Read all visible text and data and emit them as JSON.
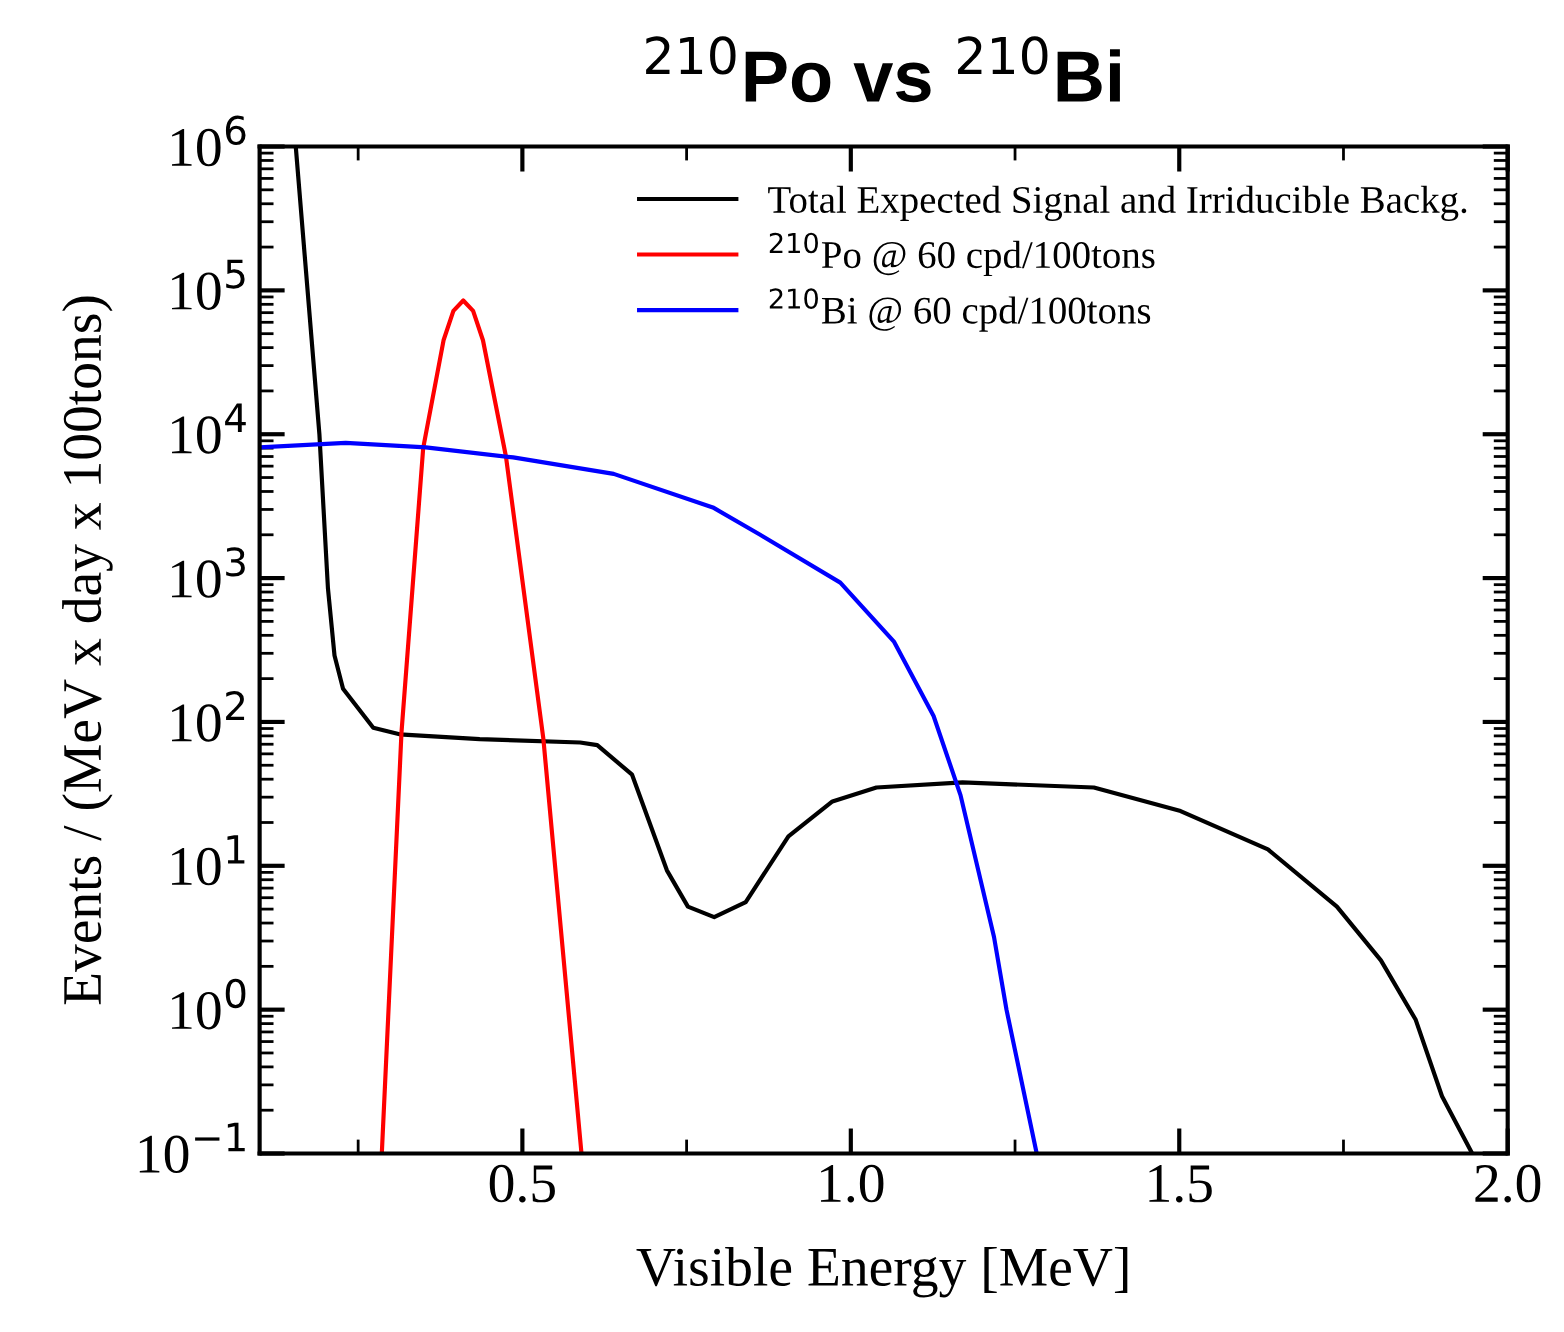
{
  "chart_data": {
    "type": "line",
    "title": "$^{210}$Po vs $^{210}$Bi",
    "xlabel": "Visible Energy [MeV]",
    "ylabel": "Events / (MeV x day x 100tons)",
    "log": "y",
    "grid": false,
    "legend": "top right",
    "line_style": "solid",
    "marker": "none",
    "xlim": [
      0.1,
      2.0
    ],
    "xticks": [
      0.5,
      {
        "value": 1,
        "label": "1.0"
      },
      1.5,
      {
        "value": 2,
        "label": "2.0"
      }
    ],
    "ylim": [
      0.1,
      1000000
    ],
    "yticks": [
      {
        "value": 0.1,
        "label": "10$^{−1}$"
      },
      {
        "value": 1,
        "label": "10$^{0}$"
      },
      {
        "value": 10,
        "label": "10$^{1}$"
      },
      {
        "value": 100,
        "label": "10$^{2}$"
      },
      {
        "value": 1000,
        "label": "10$^{3}$"
      },
      {
        "value": 10000,
        "label": "10$^{4}$"
      },
      {
        "value": 100000,
        "label": "10$^{5}$"
      },
      {
        "value": 1000000,
        "label": "10$^{6}$"
      }
    ],
    "series": [
      {
        "name": "Total Expected Signal and Irriducible Backg.",
        "color": "#000000",
        "x": [
          0.155,
          0.191,
          0.204,
          0.214,
          0.227,
          0.273,
          0.313,
          0.435,
          0.588,
          0.614,
          0.667,
          0.72,
          0.752,
          0.792,
          0.84,
          0.905,
          0.972,
          1.039,
          1.17,
          1.37,
          1.502,
          1.635,
          1.74,
          1.807,
          1.86,
          1.9,
          1.946
        ],
        "values": [
          1000000,
          10000,
          850,
          290,
          170,
          91,
          82,
          76,
          72,
          69,
          43,
          9.3,
          5.2,
          4.4,
          5.6,
          16,
          28,
          35,
          38,
          35,
          24,
          13,
          5.2,
          2.2,
          0.85,
          0.25,
          0.1
        ]
      },
      {
        "name": "$^{210}$Po @ 60 cpd/100tons",
        "color": "#ff0000",
        "x": [
          0.286,
          0.316,
          0.349,
          0.38,
          0.395,
          0.41,
          0.425,
          0.44,
          0.475,
          0.532,
          0.59
        ],
        "values": [
          0.1,
          85,
          8000,
          45000,
          72000,
          85000,
          72000,
          45000,
          7000,
          76,
          0.1
        ]
      },
      {
        "name": "$^{210}$Bi @ 60 cpd/100tons",
        "color": "#0000ff",
        "x": [
          0.1,
          0.231,
          0.353,
          0.486,
          0.639,
          0.79,
          0.862,
          0.984,
          1.066,
          1.126,
          1.167,
          1.218,
          1.237,
          1.283
        ],
        "values": [
          8100,
          8700,
          8100,
          6900,
          5300,
          3100,
          2000,
          930,
          360,
          110,
          31,
          3.2,
          1.0,
          0.1
        ]
      }
    ]
  }
}
